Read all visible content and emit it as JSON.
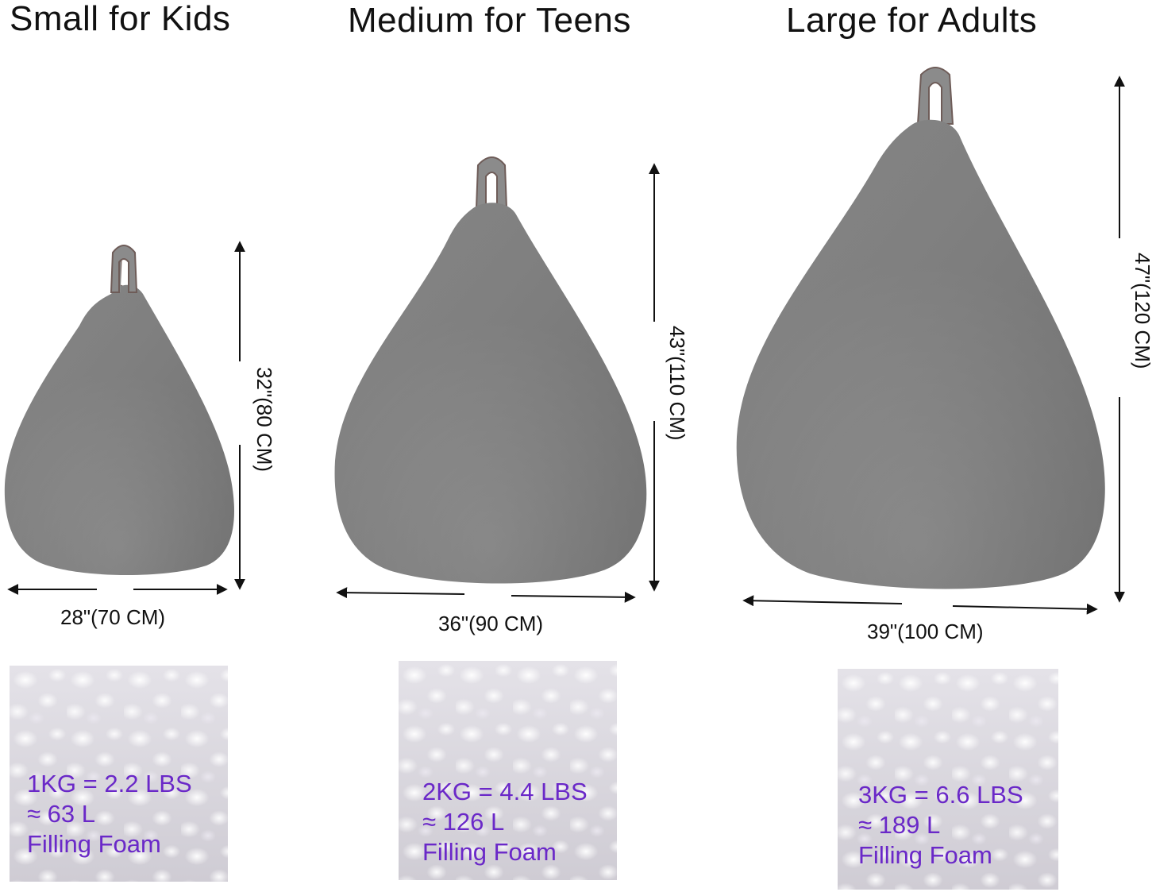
{
  "sizes": [
    {
      "title": "Small for Kids",
      "height_label": "32\"(80 CM)",
      "width_label": "28\"(70 CM)",
      "weight": "1KG = 2.2 LBS",
      "volume": "≈ 63 L",
      "filling": "Filling Foam"
    },
    {
      "title": "Medium for Teens",
      "height_label": "43\"(110 CM)",
      "width_label": "36\"(90 CM)",
      "weight": "2KG = 4.4 LBS",
      "volume": "≈ 126 L",
      "filling": "Filling Foam"
    },
    {
      "title": "Large for Adults",
      "height_label": "47\"(120 CM)",
      "width_label": "39\"(100 CM)",
      "weight": "3KG = 6.6 LBS",
      "volume": "≈ 189 L",
      "filling": "Filling Foam"
    }
  ],
  "colors": {
    "bag_fabric": "#8f8f8f",
    "text_accent": "#6a28c8",
    "foam_background": "#d8d6dc"
  }
}
